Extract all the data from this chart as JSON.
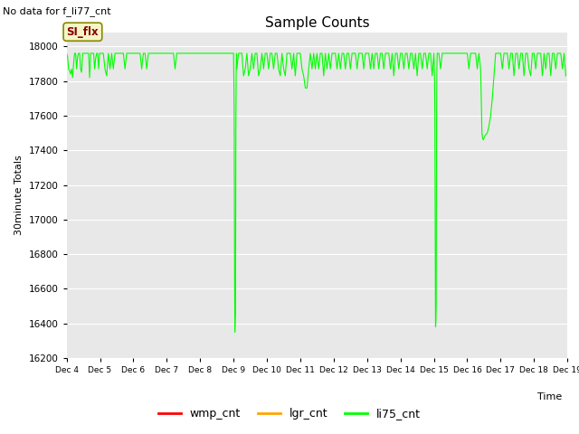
{
  "title": "Sample Counts",
  "top_left_text": "No data for f_li77_cnt",
  "ylabel": "30minute Totals",
  "xlabel": "Time",
  "annotation_text": "SI_flx",
  "ylim": [
    16200,
    18080
  ],
  "yticks": [
    16200,
    16400,
    16600,
    16800,
    17000,
    17200,
    17400,
    17600,
    17800,
    18000
  ],
  "legend_entries": [
    "wmp_cnt",
    "lgr_cnt",
    "li75_cnt"
  ],
  "legend_colors": [
    "#ff0000",
    "#ffa500",
    "#00cc00"
  ],
  "fig_bg_color": "#ffffff",
  "plot_bg_color": "#e8e8e8",
  "li75_color": "#00ff00",
  "wmp_color": "#ff0000",
  "lgr_color": "#ffa500",
  "grid_color": "#ffffff",
  "x_tick_labels": [
    "Dec 4",
    "Dec 5",
    "Dec 6",
    "Dec 7",
    "Dec 8",
    "Dec 9",
    "Dec 10",
    "Dec 11",
    "Dec 12",
    "Dec 13",
    "Dec 14",
    "Dec 15",
    "Dec 16",
    "Dec 17",
    "Dec 18",
    "Dec 19"
  ],
  "li75_data": [
    [
      4.0,
      17960
    ],
    [
      4.03,
      17940
    ],
    [
      4.06,
      17870
    ],
    [
      4.09,
      17860
    ],
    [
      4.12,
      17840
    ],
    [
      4.15,
      17870
    ],
    [
      4.18,
      17820
    ],
    [
      4.21,
      17900
    ],
    [
      4.24,
      17960
    ],
    [
      4.27,
      17960
    ],
    [
      4.3,
      17870
    ],
    [
      4.33,
      17940
    ],
    [
      4.36,
      17960
    ],
    [
      4.39,
      17960
    ],
    [
      4.42,
      17870
    ],
    [
      4.45,
      17850
    ],
    [
      4.48,
      17960
    ],
    [
      4.51,
      17960
    ],
    [
      4.54,
      17960
    ],
    [
      4.57,
      17960
    ],
    [
      4.6,
      17960
    ],
    [
      4.63,
      17960
    ],
    [
      4.66,
      17960
    ],
    [
      4.69,
      17820
    ],
    [
      4.72,
      17960
    ],
    [
      4.75,
      17960
    ],
    [
      4.78,
      17960
    ],
    [
      4.81,
      17960
    ],
    [
      4.84,
      17870
    ],
    [
      4.87,
      17930
    ],
    [
      4.9,
      17960
    ],
    [
      4.93,
      17960
    ],
    [
      4.96,
      17870
    ],
    [
      4.99,
      17960
    ],
    [
      5.0,
      17960
    ],
    [
      5.05,
      17960
    ],
    [
      5.1,
      17960
    ],
    [
      5.15,
      17870
    ],
    [
      5.2,
      17830
    ],
    [
      5.25,
      17960
    ],
    [
      5.3,
      17870
    ],
    [
      5.35,
      17960
    ],
    [
      5.4,
      17870
    ],
    [
      5.45,
      17960
    ],
    [
      5.5,
      17960
    ],
    [
      5.55,
      17960
    ],
    [
      5.6,
      17960
    ],
    [
      5.65,
      17960
    ],
    [
      5.7,
      17960
    ],
    [
      5.75,
      17870
    ],
    [
      5.8,
      17960
    ],
    [
      5.85,
      17960
    ],
    [
      5.9,
      17960
    ],
    [
      5.95,
      17960
    ],
    [
      6.0,
      17960
    ],
    [
      6.05,
      17960
    ],
    [
      6.1,
      17960
    ],
    [
      6.15,
      17960
    ],
    [
      6.2,
      17960
    ],
    [
      6.25,
      17870
    ],
    [
      6.3,
      17960
    ],
    [
      6.35,
      17960
    ],
    [
      6.4,
      17870
    ],
    [
      6.45,
      17960
    ],
    [
      6.5,
      17960
    ],
    [
      6.55,
      17960
    ],
    [
      6.6,
      17960
    ],
    [
      6.65,
      17960
    ],
    [
      6.7,
      17960
    ],
    [
      6.75,
      17960
    ],
    [
      6.8,
      17960
    ],
    [
      6.85,
      17960
    ],
    [
      6.9,
      17960
    ],
    [
      6.95,
      17960
    ],
    [
      7.0,
      17960
    ],
    [
      7.05,
      17960
    ],
    [
      7.1,
      17960
    ],
    [
      7.15,
      17960
    ],
    [
      7.2,
      17960
    ],
    [
      7.25,
      17870
    ],
    [
      7.3,
      17960
    ],
    [
      7.35,
      17960
    ],
    [
      7.4,
      17960
    ],
    [
      7.45,
      17960
    ],
    [
      7.5,
      17960
    ],
    [
      7.55,
      17960
    ],
    [
      7.6,
      17960
    ],
    [
      7.65,
      17960
    ],
    [
      7.7,
      17960
    ],
    [
      7.75,
      17960
    ],
    [
      7.8,
      17960
    ],
    [
      7.85,
      17960
    ],
    [
      7.9,
      17960
    ],
    [
      7.95,
      17960
    ],
    [
      8.0,
      17960
    ],
    [
      8.05,
      17960
    ],
    [
      8.1,
      17960
    ],
    [
      8.15,
      17960
    ],
    [
      8.2,
      17960
    ],
    [
      8.25,
      17960
    ],
    [
      8.3,
      17960
    ],
    [
      8.35,
      17960
    ],
    [
      8.4,
      17960
    ],
    [
      8.45,
      17960
    ],
    [
      8.5,
      17960
    ],
    [
      8.55,
      17960
    ],
    [
      8.6,
      17960
    ],
    [
      8.65,
      17960
    ],
    [
      8.7,
      17960
    ],
    [
      8.75,
      17960
    ],
    [
      8.8,
      17960
    ],
    [
      8.85,
      17960
    ],
    [
      8.9,
      17960
    ],
    [
      8.95,
      17960
    ],
    [
      9.0,
      17960
    ],
    [
      9.01,
      17820
    ],
    [
      9.02,
      17600
    ],
    [
      9.03,
      16800
    ],
    [
      9.04,
      16350
    ],
    [
      9.05,
      16420
    ],
    [
      9.06,
      16460
    ],
    [
      9.07,
      17500
    ],
    [
      9.08,
      17870
    ],
    [
      9.09,
      17960
    ],
    [
      9.1,
      17870
    ],
    [
      9.15,
      17960
    ],
    [
      9.2,
      17960
    ],
    [
      9.25,
      17960
    ],
    [
      9.3,
      17830
    ],
    [
      9.35,
      17870
    ],
    [
      9.4,
      17960
    ],
    [
      9.45,
      17830
    ],
    [
      9.5,
      17870
    ],
    [
      9.55,
      17960
    ],
    [
      9.6,
      17870
    ],
    [
      9.65,
      17960
    ],
    [
      9.7,
      17960
    ],
    [
      9.75,
      17830
    ],
    [
      9.8,
      17870
    ],
    [
      9.85,
      17960
    ],
    [
      9.9,
      17870
    ],
    [
      9.95,
      17960
    ],
    [
      10.0,
      17960
    ],
    [
      10.05,
      17870
    ],
    [
      10.1,
      17960
    ],
    [
      10.15,
      17960
    ],
    [
      10.2,
      17870
    ],
    [
      10.25,
      17960
    ],
    [
      10.3,
      17960
    ],
    [
      10.35,
      17870
    ],
    [
      10.4,
      17830
    ],
    [
      10.45,
      17960
    ],
    [
      10.5,
      17870
    ],
    [
      10.55,
      17830
    ],
    [
      10.6,
      17960
    ],
    [
      10.65,
      17960
    ],
    [
      10.7,
      17960
    ],
    [
      10.75,
      17870
    ],
    [
      10.8,
      17960
    ],
    [
      10.85,
      17830
    ],
    [
      10.9,
      17960
    ],
    [
      10.95,
      17960
    ],
    [
      11.0,
      17960
    ],
    [
      11.05,
      17870
    ],
    [
      11.1,
      17830
    ],
    [
      11.15,
      17760
    ],
    [
      11.2,
      17760
    ],
    [
      11.25,
      17870
    ],
    [
      11.3,
      17960
    ],
    [
      11.35,
      17870
    ],
    [
      11.4,
      17960
    ],
    [
      11.45,
      17870
    ],
    [
      11.5,
      17960
    ],
    [
      11.55,
      17870
    ],
    [
      11.6,
      17960
    ],
    [
      11.65,
      17960
    ],
    [
      11.7,
      17830
    ],
    [
      11.75,
      17960
    ],
    [
      11.8,
      17870
    ],
    [
      11.85,
      17960
    ],
    [
      11.9,
      17870
    ],
    [
      11.95,
      17960
    ],
    [
      12.0,
      17960
    ],
    [
      12.05,
      17960
    ],
    [
      12.1,
      17870
    ],
    [
      12.15,
      17960
    ],
    [
      12.2,
      17870
    ],
    [
      12.25,
      17960
    ],
    [
      12.3,
      17960
    ],
    [
      12.35,
      17870
    ],
    [
      12.4,
      17960
    ],
    [
      12.45,
      17960
    ],
    [
      12.5,
      17870
    ],
    [
      12.55,
      17960
    ],
    [
      12.6,
      17960
    ],
    [
      12.65,
      17960
    ],
    [
      12.7,
      17870
    ],
    [
      12.75,
      17960
    ],
    [
      12.8,
      17960
    ],
    [
      12.85,
      17960
    ],
    [
      12.9,
      17870
    ],
    [
      12.95,
      17960
    ],
    [
      13.0,
      17960
    ],
    [
      13.05,
      17960
    ],
    [
      13.1,
      17870
    ],
    [
      13.15,
      17960
    ],
    [
      13.2,
      17870
    ],
    [
      13.25,
      17960
    ],
    [
      13.3,
      17960
    ],
    [
      13.35,
      17870
    ],
    [
      13.4,
      17960
    ],
    [
      13.45,
      17960
    ],
    [
      13.5,
      17870
    ],
    [
      13.55,
      17960
    ],
    [
      13.6,
      17960
    ],
    [
      13.65,
      17960
    ],
    [
      13.7,
      17870
    ],
    [
      13.75,
      17960
    ],
    [
      13.8,
      17830
    ],
    [
      13.85,
      17960
    ],
    [
      13.9,
      17960
    ],
    [
      13.95,
      17870
    ],
    [
      14.0,
      17960
    ],
    [
      14.05,
      17960
    ],
    [
      14.1,
      17870
    ],
    [
      14.15,
      17960
    ],
    [
      14.2,
      17960
    ],
    [
      14.25,
      17870
    ],
    [
      14.3,
      17960
    ],
    [
      14.35,
      17960
    ],
    [
      14.4,
      17870
    ],
    [
      14.45,
      17960
    ],
    [
      14.5,
      17830
    ],
    [
      14.55,
      17960
    ],
    [
      14.6,
      17960
    ],
    [
      14.65,
      17870
    ],
    [
      14.7,
      17960
    ],
    [
      14.75,
      17960
    ],
    [
      14.8,
      17870
    ],
    [
      14.85,
      17960
    ],
    [
      14.9,
      17960
    ],
    [
      14.95,
      17830
    ],
    [
      15.0,
      17960
    ],
    [
      15.01,
      17900
    ],
    [
      15.02,
      17820
    ],
    [
      15.03,
      17600
    ],
    [
      15.04,
      16900
    ],
    [
      15.05,
      16380
    ],
    [
      15.06,
      16400
    ],
    [
      15.07,
      16500
    ],
    [
      15.08,
      17500
    ],
    [
      15.09,
      17870
    ],
    [
      15.1,
      17960
    ],
    [
      15.15,
      17960
    ],
    [
      15.2,
      17870
    ],
    [
      15.25,
      17960
    ],
    [
      15.3,
      17960
    ],
    [
      15.35,
      17960
    ],
    [
      15.4,
      17960
    ],
    [
      15.45,
      17960
    ],
    [
      15.5,
      17960
    ],
    [
      15.55,
      17960
    ],
    [
      15.6,
      17960
    ],
    [
      15.65,
      17960
    ],
    [
      15.7,
      17960
    ],
    [
      15.75,
      17960
    ],
    [
      15.8,
      17960
    ],
    [
      15.85,
      17960
    ],
    [
      15.9,
      17960
    ],
    [
      15.95,
      17960
    ],
    [
      16.0,
      17960
    ],
    [
      16.05,
      17870
    ],
    [
      16.1,
      17960
    ],
    [
      16.15,
      17960
    ],
    [
      16.2,
      17960
    ],
    [
      16.25,
      17960
    ],
    [
      16.3,
      17870
    ],
    [
      16.35,
      17960
    ],
    [
      16.4,
      17870
    ],
    [
      16.42,
      17700
    ],
    [
      16.44,
      17500
    ],
    [
      16.46,
      17470
    ],
    [
      16.48,
      17460
    ],
    [
      16.5,
      17470
    ],
    [
      16.55,
      17490
    ],
    [
      16.6,
      17500
    ],
    [
      16.65,
      17540
    ],
    [
      16.7,
      17600
    ],
    [
      16.75,
      17700
    ],
    [
      16.8,
      17830
    ],
    [
      16.85,
      17960
    ],
    [
      16.9,
      17960
    ],
    [
      16.95,
      17960
    ],
    [
      17.0,
      17960
    ],
    [
      17.05,
      17870
    ],
    [
      17.1,
      17960
    ],
    [
      17.15,
      17960
    ],
    [
      17.2,
      17960
    ],
    [
      17.25,
      17870
    ],
    [
      17.3,
      17960
    ],
    [
      17.35,
      17960
    ],
    [
      17.4,
      17830
    ],
    [
      17.45,
      17960
    ],
    [
      17.5,
      17960
    ],
    [
      17.55,
      17870
    ],
    [
      17.6,
      17960
    ],
    [
      17.65,
      17960
    ],
    [
      17.7,
      17830
    ],
    [
      17.75,
      17960
    ],
    [
      17.8,
      17960
    ],
    [
      17.85,
      17870
    ],
    [
      17.9,
      17830
    ],
    [
      17.95,
      17960
    ],
    [
      18.0,
      17960
    ],
    [
      18.05,
      17870
    ],
    [
      18.1,
      17960
    ],
    [
      18.15,
      17960
    ],
    [
      18.2,
      17960
    ],
    [
      18.25,
      17830
    ],
    [
      18.3,
      17960
    ],
    [
      18.35,
      17870
    ],
    [
      18.4,
      17960
    ],
    [
      18.45,
      17960
    ],
    [
      18.5,
      17830
    ],
    [
      18.55,
      17960
    ],
    [
      18.6,
      17960
    ],
    [
      18.65,
      17870
    ],
    [
      18.7,
      17960
    ],
    [
      18.75,
      17960
    ],
    [
      18.8,
      17960
    ],
    [
      18.85,
      17870
    ],
    [
      18.9,
      17960
    ],
    [
      18.95,
      17830
    ]
  ]
}
